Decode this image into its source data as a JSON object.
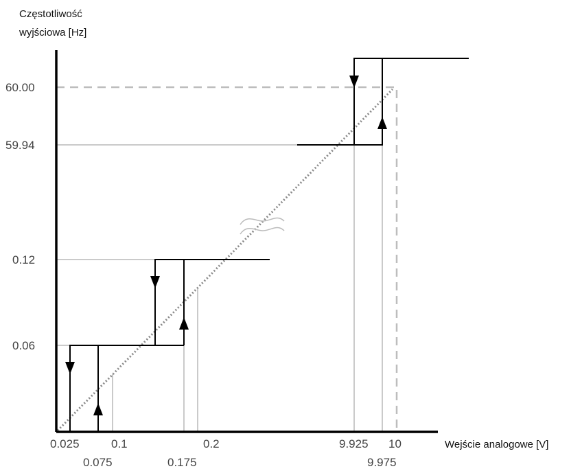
{
  "y_axis": {
    "title_line1": "Częstotliwość",
    "title_line2": "wyjściowa [Hz]"
  },
  "x_axis": {
    "title": "Wejście analogowe [V]"
  },
  "y_ticks": {
    "t60": "60.00",
    "t5994": "59.94",
    "t012": "0.12",
    "t006": "0.06"
  },
  "x_ticks": {
    "t0025": "0.025",
    "t0075": "0.075",
    "t01": "0.1",
    "t0175": "0.175",
    "t02": "0.2",
    "t9925": "9.925",
    "t9975": "9.975",
    "t10": "10"
  },
  "colors": {
    "axis": "#000000",
    "step": "#000000",
    "guide": "#b8b8b8",
    "dashed": "#bdbdbd",
    "dotted": "#8a8a8a",
    "break_mark": "#bbbbbb"
  }
}
